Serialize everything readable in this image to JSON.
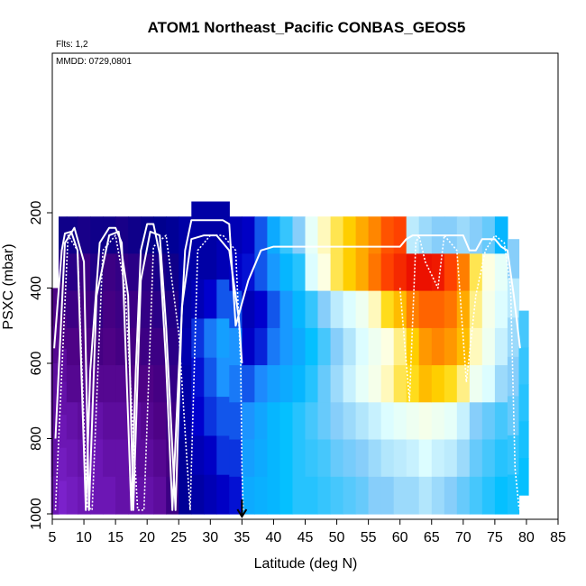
{
  "chart_data": {
    "type": "heatmap",
    "title": "ATOM1 Northeast_Pacific CONBAS_GEOS5",
    "subtitle": "Flts: 1,2",
    "annotation": "MMDD: 0729,0801",
    "xlabel": "Latitude (deg N)",
    "ylabel": "PSXC (mbar)",
    "xlim": [
      5,
      85
    ],
    "ylim": [
      1000,
      0
    ],
    "xticks": [
      "5",
      "10",
      "15",
      "20",
      "25",
      "30",
      "35",
      "40",
      "45",
      "50",
      "55",
      "60",
      "65",
      "70",
      "75",
      "80",
      "85"
    ],
    "yticks": [
      "200",
      "400",
      "600",
      "800",
      "1000"
    ],
    "grid": false,
    "marker_latitude": 35,
    "colormap": [
      "#8A2BE2",
      "#4B0082",
      "#00008B",
      "#0000CD",
      "#1E90FF",
      "#00BFFF",
      "#87CEFA",
      "#E0FFFF",
      "#FFFFE0",
      "#FFD700",
      "#FF8C00",
      "#FF4500",
      "#E60000"
    ],
    "heatmap_columns": [
      {
        "lat": 5.5,
        "p_top": 400,
        "p_bot": 1000,
        "v": [
          0.08,
          0.07,
          0.06,
          0.06,
          0.05,
          0.04
        ]
      },
      {
        "lat": 6.5,
        "p_top": 210,
        "p_bot": 1000,
        "v": [
          0.15,
          0.12,
          0.1,
          0.08,
          0.06,
          0.05,
          0.04,
          0.03,
          0.02
        ]
      },
      {
        "lat": 8,
        "p_top": 210,
        "p_bot": 1000,
        "v": [
          0.15,
          0.12,
          0.1,
          0.08,
          0.07,
          0.05,
          0.04,
          0.03
        ]
      },
      {
        "lat": 10,
        "p_top": 210,
        "p_bot": 1000,
        "v": [
          0.14,
          0.1,
          0.09,
          0.08,
          0.07,
          0.06,
          0.05,
          0.04
        ]
      },
      {
        "lat": 12,
        "p_top": 210,
        "p_bot": 1000,
        "v": [
          0.15,
          0.13,
          0.11,
          0.09,
          0.07,
          0.05,
          0.04,
          0.04
        ]
      },
      {
        "lat": 14,
        "p_top": 210,
        "p_bot": 1000,
        "v": [
          0.15,
          0.1,
          0.09,
          0.08,
          0.07,
          0.06,
          0.05,
          0.04
        ]
      },
      {
        "lat": 16,
        "p_top": 210,
        "p_bot": 1000,
        "v": [
          0.14,
          0.11,
          0.1,
          0.09,
          0.07,
          0.06,
          0.05,
          0.05
        ]
      },
      {
        "lat": 18,
        "p_top": 210,
        "p_bot": 1000,
        "v": [
          0.15,
          0.12,
          0.1,
          0.09,
          0.08,
          0.06,
          0.06,
          0.05
        ]
      },
      {
        "lat": 20,
        "p_top": 210,
        "p_bot": 1000,
        "v": [
          0.16,
          0.12,
          0.11,
          0.1,
          0.08,
          0.07,
          0.06,
          0.05
        ]
      },
      {
        "lat": 22,
        "p_top": 210,
        "p_bot": 1000,
        "v": [
          0.17,
          0.14,
          0.12,
          0.1,
          0.09,
          0.08,
          0.07,
          0.06
        ]
      },
      {
        "lat": 24,
        "p_top": 210,
        "p_bot": 1000,
        "v": [
          0.18,
          0.15,
          0.13,
          0.12,
          0.11,
          0.1,
          0.09,
          0.1
        ]
      },
      {
        "lat": 26,
        "p_top": 210,
        "p_bot": 1000,
        "v": [
          0.2,
          0.2,
          0.2,
          0.21,
          0.2,
          0.2,
          0.18,
          0.18
        ]
      },
      {
        "lat": 28,
        "p_top": 170,
        "p_bot": 1000,
        "v": [
          0.2,
          0.2,
          0.22,
          0.28,
          0.26,
          0.25,
          0.22,
          0.2
        ]
      },
      {
        "lat": 30,
        "p_top": 170,
        "p_bot": 1000,
        "v": [
          0.2,
          0.2,
          0.25,
          0.32,
          0.3,
          0.28,
          0.24,
          0.22
        ]
      },
      {
        "lat": 32,
        "p_top": 170,
        "p_bot": 1000,
        "v": [
          0.2,
          0.22,
          0.3,
          0.36,
          0.34,
          0.3,
          0.28,
          0.24
        ]
      },
      {
        "lat": 34,
        "p_top": 210,
        "p_bot": 1000,
        "v": [
          0.22,
          0.24,
          0.3,
          0.34,
          0.32,
          0.3,
          0.28,
          0.26
        ]
      },
      {
        "lat": 36,
        "p_top": 210,
        "p_bot": 1000,
        "v": [
          0.24,
          0.26,
          0.22,
          0.24,
          0.3,
          0.34,
          0.36,
          0.38
        ]
      },
      {
        "lat": 38,
        "p_top": 210,
        "p_bot": 1000,
        "v": [
          0.3,
          0.3,
          0.25,
          0.27,
          0.33,
          0.37,
          0.38,
          0.39
        ]
      },
      {
        "lat": 40,
        "p_top": 210,
        "p_bot": 1000,
        "v": [
          0.38,
          0.35,
          0.3,
          0.32,
          0.36,
          0.4,
          0.4,
          0.4
        ]
      },
      {
        "lat": 42,
        "p_top": 210,
        "p_bot": 1000,
        "v": [
          0.45,
          0.4,
          0.35,
          0.35,
          0.38,
          0.42,
          0.42,
          0.42
        ]
      },
      {
        "lat": 44,
        "p_top": 210,
        "p_bot": 1000,
        "v": [
          0.5,
          0.44,
          0.4,
          0.38,
          0.4,
          0.44,
          0.44,
          0.44
        ]
      },
      {
        "lat": 46,
        "p_top": 210,
        "p_bot": 1000,
        "v": [
          0.6,
          0.58,
          0.45,
          0.42,
          0.44,
          0.46,
          0.45,
          0.44
        ]
      },
      {
        "lat": 48,
        "p_top": 210,
        "p_bot": 1000,
        "v": [
          0.68,
          0.66,
          0.5,
          0.46,
          0.48,
          0.48,
          0.46,
          0.45
        ]
      },
      {
        "lat": 50,
        "p_top": 210,
        "p_bot": 1000,
        "v": [
          0.72,
          0.72,
          0.55,
          0.5,
          0.52,
          0.5,
          0.48,
          0.46
        ]
      },
      {
        "lat": 52,
        "p_top": 210,
        "p_bot": 1000,
        "v": [
          0.76,
          0.76,
          0.58,
          0.54,
          0.56,
          0.52,
          0.49,
          0.47
        ]
      },
      {
        "lat": 54,
        "p_top": 210,
        "p_bot": 1000,
        "v": [
          0.8,
          0.8,
          0.62,
          0.58,
          0.6,
          0.54,
          0.5,
          0.48
        ]
      },
      {
        "lat": 56,
        "p_top": 210,
        "p_bot": 1000,
        "v": [
          0.84,
          0.86,
          0.68,
          0.62,
          0.64,
          0.56,
          0.52,
          0.5
        ]
      },
      {
        "lat": 58,
        "p_top": 210,
        "p_bot": 1000,
        "v": [
          0.9,
          0.92,
          0.74,
          0.66,
          0.68,
          0.58,
          0.54,
          0.5
        ]
      },
      {
        "lat": 60,
        "p_top": 210,
        "p_bot": 1000,
        "v": [
          0.92,
          0.95,
          0.78,
          0.7,
          0.72,
          0.6,
          0.55,
          0.52
        ]
      },
      {
        "lat": 62,
        "p_top": 210,
        "p_bot": 1000,
        "v": [
          0.55,
          0.98,
          0.85,
          0.76,
          0.74,
          0.62,
          0.56,
          0.52
        ]
      },
      {
        "lat": 64,
        "p_top": 210,
        "p_bot": 1000,
        "v": [
          0.52,
          0.98,
          0.88,
          0.82,
          0.78,
          0.64,
          0.58,
          0.54
        ]
      },
      {
        "lat": 66,
        "p_top": 210,
        "p_bot": 1000,
        "v": [
          0.5,
          0.97,
          0.88,
          0.84,
          0.76,
          0.62,
          0.56,
          0.52
        ]
      },
      {
        "lat": 68,
        "p_top": 210,
        "p_bot": 1000,
        "v": [
          0.5,
          0.92,
          0.86,
          0.82,
          0.74,
          0.6,
          0.55,
          0.5
        ]
      },
      {
        "lat": 70,
        "p_top": 210,
        "p_bot": 1000,
        "v": [
          0.52,
          0.85,
          0.8,
          0.78,
          0.7,
          0.56,
          0.52,
          0.48
        ]
      },
      {
        "lat": 72,
        "p_top": 210,
        "p_bot": 1000,
        "v": [
          0.5,
          0.72,
          0.7,
          0.68,
          0.62,
          0.5,
          0.48,
          0.46
        ]
      },
      {
        "lat": 74,
        "p_top": 210,
        "p_bot": 1000,
        "v": [
          0.48,
          0.66,
          0.64,
          0.62,
          0.58,
          0.48,
          0.46,
          0.44
        ]
      },
      {
        "lat": 76,
        "p_top": 210,
        "p_bot": 1000,
        "v": [
          0.4,
          0.6,
          0.58,
          0.56,
          0.52,
          0.46,
          0.44,
          0.42
        ]
      },
      {
        "lat": 78,
        "p_top": 270,
        "p_bot": 1000,
        "v": [
          0.5,
          0.55,
          0.52,
          0.5,
          0.48,
          0.45,
          0.43
        ]
      },
      {
        "lat": 79.6,
        "p_top": 460,
        "p_bot": 950,
        "v": [
          0.46,
          0.45,
          0.44,
          0.43,
          0.42
        ]
      }
    ],
    "series": [
      {
        "style": "solid",
        "lat": [
          5.3,
          6.5,
          7,
          8,
          9,
          10.3,
          11,
          12.5,
          14,
          15,
          16,
          17.5,
          18.2,
          19,
          20,
          21,
          22,
          23,
          24,
          25,
          26,
          27,
          28,
          30,
          32,
          33,
          34,
          36,
          38,
          40,
          45,
          50,
          55,
          60,
          61,
          62,
          65,
          68,
          70,
          71,
          72,
          73,
          74,
          75,
          76,
          77,
          78,
          79
        ],
        "p": [
          560,
          300,
          255,
          250,
          300,
          990,
          620,
          280,
          240,
          240,
          280,
          990,
          620,
          300,
          230,
          230,
          310,
          600,
          990,
          620,
          300,
          220,
          220,
          220,
          220,
          230,
          500,
          380,
          300,
          290,
          290,
          290,
          290,
          290,
          270,
          260,
          260,
          260,
          260,
          300,
          300,
          270,
          270,
          270,
          290,
          300,
          420,
          560
        ]
      },
      {
        "style": "solid",
        "lat": [
          5.5,
          7,
          8.5,
          10,
          10.8,
          12,
          14,
          15.5,
          17,
          17.8,
          19,
          20.5,
          22,
          23,
          24.5,
          25.5,
          27,
          29,
          31,
          33,
          34.5,
          35
        ],
        "p": [
          800,
          280,
          240,
          330,
          990,
          420,
          260,
          250,
          420,
          990,
          380,
          250,
          260,
          500,
          990,
          450,
          270,
          260,
          260,
          300,
          480,
          600
        ]
      },
      {
        "style": "dotted",
        "lat": [
          5.5,
          7.5,
          9,
          10.5,
          11.3,
          13,
          15,
          16.5,
          18.5,
          19.5,
          21,
          23,
          25,
          26.8,
          28,
          30,
          32,
          34,
          34.8,
          35,
          35.2
        ],
        "p": [
          990,
          260,
          300,
          980,
          990,
          300,
          260,
          400,
          990,
          990,
          290,
          260,
          520,
          990,
          300,
          260,
          260,
          300,
          600,
          880,
          990
        ]
      },
      {
        "style": "dotted",
        "lat": [
          60,
          61.5,
          62.5,
          63,
          64,
          66,
          67,
          69,
          70.5,
          72,
          73.5,
          75,
          76.5,
          77.5,
          78.2,
          78.8,
          79
        ],
        "p": [
          400,
          700,
          280,
          260,
          330,
          400,
          260,
          300,
          650,
          420,
          300,
          260,
          280,
          400,
          880,
          980,
          990
        ]
      }
    ]
  }
}
